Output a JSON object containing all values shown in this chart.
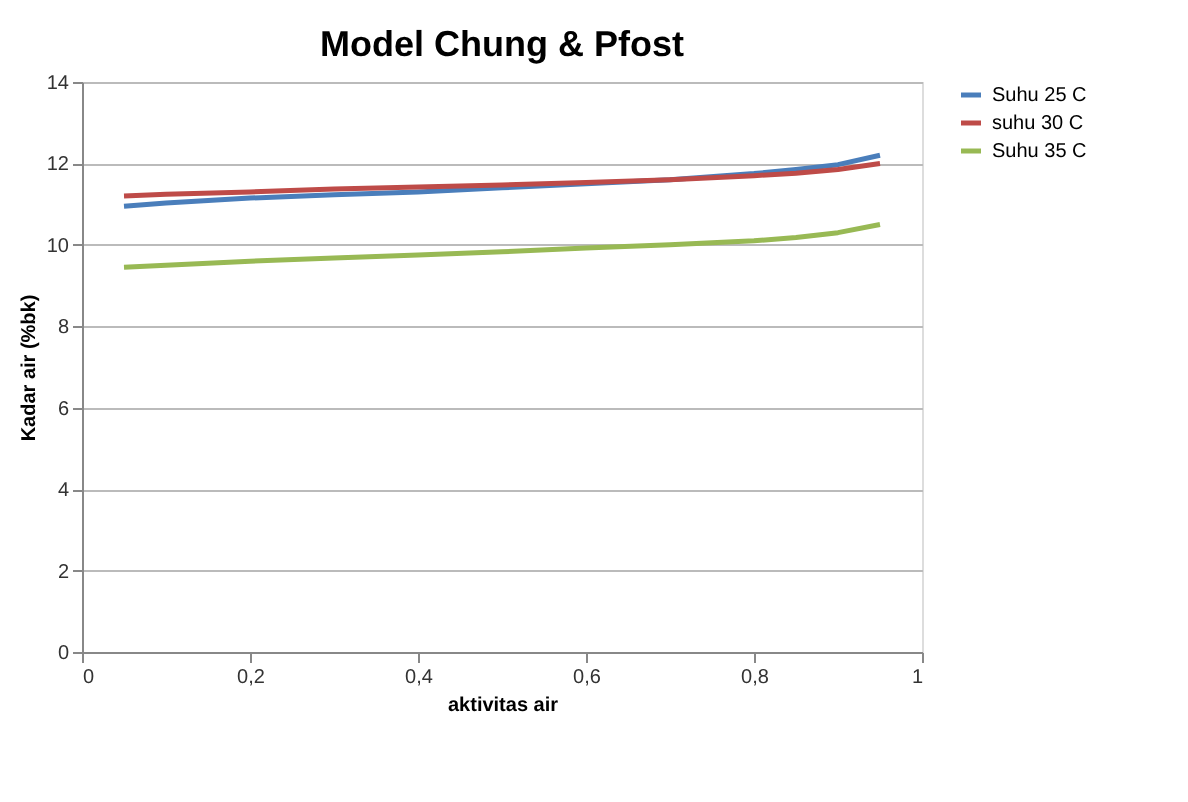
{
  "chart_data": {
    "type": "line",
    "title": "Model Chung & Pfost",
    "xlabel": "aktivitas air",
    "ylabel": "Kadar air (%bk)",
    "x": [
      0.05,
      0.1,
      0.2,
      0.3,
      0.4,
      0.5,
      0.6,
      0.7,
      0.8,
      0.85,
      0.9,
      0.95
    ],
    "series": [
      {
        "name": "Suhu 25 C",
        "color": "#4a7ebb",
        "values": [
          10.95,
          11.03,
          11.15,
          11.23,
          11.3,
          11.4,
          11.5,
          11.6,
          11.75,
          11.85,
          11.97,
          12.2
        ]
      },
      {
        "name": "suhu 30 C",
        "color": "#be4b48",
        "values": [
          11.2,
          11.24,
          11.3,
          11.37,
          11.42,
          11.47,
          11.53,
          11.6,
          11.7,
          11.76,
          11.85,
          12.0
        ]
      },
      {
        "name": "Suhu 35 C",
        "color": "#98b954",
        "values": [
          9.45,
          9.5,
          9.6,
          9.68,
          9.75,
          9.83,
          9.92,
          10.0,
          10.1,
          10.18,
          10.3,
          10.5
        ]
      }
    ],
    "xlim": [
      0,
      1
    ],
    "xticks": [
      0,
      {
        "value": 0.2,
        "label": "0,2"
      },
      {
        "value": 0.4,
        "label": "0,4"
      },
      {
        "value": 0.6,
        "label": "0,6"
      },
      {
        "value": 0.8,
        "label": "0,8"
      },
      1
    ],
    "ylim": [
      0,
      14
    ],
    "yticks": [
      0,
      2,
      4,
      6,
      8,
      10,
      12,
      14
    ],
    "grid": "y",
    "legend": "right",
    "marker": "none",
    "line_style": "solid"
  }
}
